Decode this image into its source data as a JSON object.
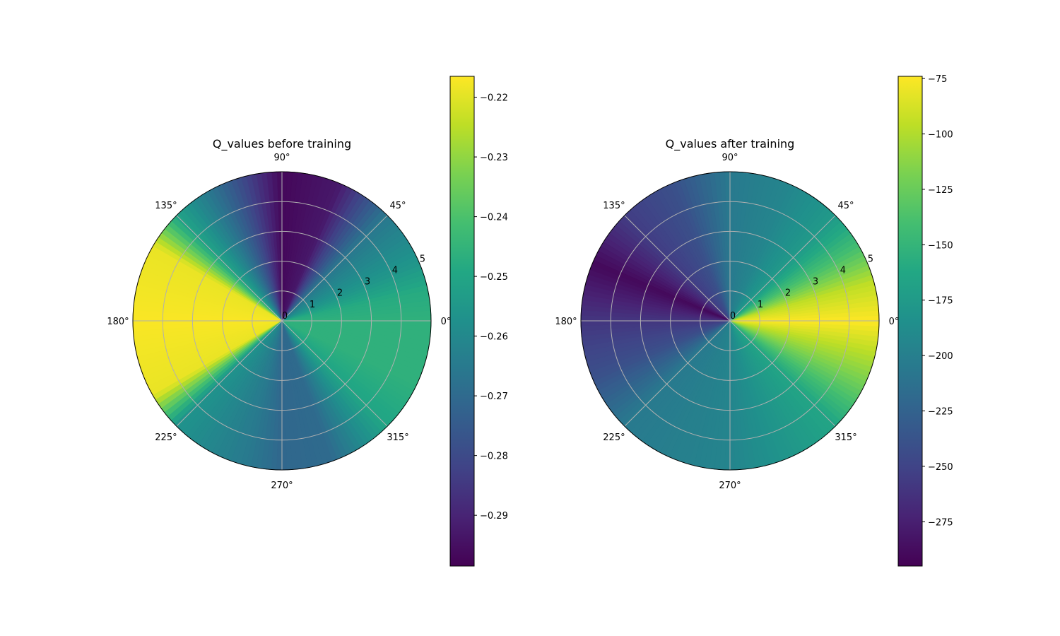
{
  "chart_data": [
    {
      "type": "heatmap",
      "projection": "polar",
      "title": "Q_values before training",
      "theta_tick_labels": [
        "0°",
        "45°",
        "90°",
        "135°",
        "180°",
        "225°",
        "270°",
        "315°"
      ],
      "theta_ticks_deg": [
        0,
        45,
        90,
        135,
        180,
        225,
        270,
        315
      ],
      "r_tick_labels": [
        "0",
        "1",
        "2",
        "3",
        "4",
        "5"
      ],
      "r_ticks": [
        0,
        1,
        2,
        3,
        4,
        5
      ],
      "rlim": [
        0,
        5
      ],
      "grid": true,
      "colormap": "viridis",
      "clim": [
        -0.2985,
        -0.2165
      ],
      "colorbar_ticks": [
        -0.22,
        -0.23,
        -0.24,
        -0.25,
        -0.26,
        -0.27,
        -0.28,
        -0.29
      ],
      "colorbar_tick_labels": [
        "−0.22",
        "−0.23",
        "−0.24",
        "−0.25",
        "−0.26",
        "−0.27",
        "−0.28",
        "−0.29"
      ],
      "angular_profile": {
        "theta_deg": [
          0,
          12,
          22.5,
          45,
          67.5,
          90,
          112.5,
          135,
          150,
          180,
          210,
          225,
          255,
          270,
          290,
          315,
          335,
          360
        ],
        "value": [
          -0.246,
          -0.248,
          -0.255,
          -0.2655,
          -0.293,
          -0.297,
          -0.273,
          -0.251,
          -0.219,
          -0.217,
          -0.219,
          -0.2565,
          -0.265,
          -0.271,
          -0.27,
          -0.25,
          -0.246,
          -0.246
        ]
      }
    },
    {
      "type": "heatmap",
      "projection": "polar",
      "title": "Q_values after training",
      "theta_tick_labels": [
        "0°",
        "45°",
        "90°",
        "135°",
        "180°",
        "225°",
        "270°",
        "315°"
      ],
      "theta_ticks_deg": [
        0,
        45,
        90,
        135,
        180,
        225,
        270,
        315
      ],
      "r_tick_labels": [
        "0",
        "1",
        "2",
        "3",
        "4",
        "5"
      ],
      "r_ticks": [
        0,
        1,
        2,
        3,
        4,
        5
      ],
      "rlim": [
        0,
        5
      ],
      "grid": true,
      "colormap": "viridis",
      "clim": [
        -295,
        -74
      ],
      "colorbar_ticks": [
        -75,
        -100,
        -125,
        -150,
        -175,
        -200,
        -225,
        -250,
        -275
      ],
      "colorbar_tick_labels": [
        "−75",
        "−100",
        "−125",
        "−150",
        "−175",
        "−200",
        "−225",
        "−250",
        "−275"
      ],
      "angular_profile": {
        "theta_deg": [
          0,
          15,
          30,
          45,
          67.5,
          90,
          112.5,
          135,
          157.5,
          180,
          202.5,
          225,
          247.5,
          270,
          292.5,
          315,
          337.5,
          360
        ],
        "value": [
          -74,
          -95,
          -140,
          -175,
          -195,
          -205,
          -240,
          -255,
          -290,
          -260,
          -240,
          -205,
          -200,
          -195,
          -180,
          -165,
          -115,
          -74
        ]
      }
    }
  ]
}
